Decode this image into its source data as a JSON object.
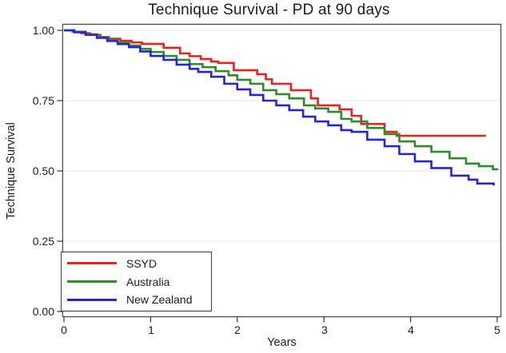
{
  "title": "Technique Survival - PD at 90 days",
  "chart_data": {
    "type": "line",
    "subtype": "kaplan-meier-step",
    "title": "Technique Survival - PD at 90 days",
    "xlabel": "Years",
    "ylabel": "Technique Survival",
    "xlim": [
      0,
      5
    ],
    "ylim": [
      0.0,
      1.0
    ],
    "x_ticks": [
      "0",
      "1",
      "2",
      "3",
      "4",
      "5"
    ],
    "x_tick_values": [
      0,
      1,
      2,
      3,
      4,
      5
    ],
    "y_ticks": [
      "1.00",
      "0.75",
      "0.50",
      "0.25",
      "0.00"
    ],
    "y_tick_values": [
      1.0,
      0.75,
      0.5,
      0.25,
      0.0
    ],
    "grid": "horizontal-light",
    "legend_position": "inside-bottom-left",
    "frame_color": "#4d4d4d",
    "grid_color": "#e4e4e7",
    "series": [
      {
        "name": "SSYD",
        "color": "#e8221f",
        "points": [
          [
            0,
            1.0
          ],
          [
            0.1,
            0.995
          ],
          [
            0.2,
            0.99
          ],
          [
            0.3,
            0.984
          ],
          [
            0.42,
            0.976
          ],
          [
            0.52,
            0.97
          ],
          [
            0.65,
            0.963
          ],
          [
            0.78,
            0.957
          ],
          [
            0.9,
            0.952
          ],
          [
            1.15,
            0.938
          ],
          [
            1.34,
            0.918
          ],
          [
            1.45,
            0.908
          ],
          [
            1.58,
            0.898
          ],
          [
            1.7,
            0.889
          ],
          [
            1.78,
            0.884
          ],
          [
            1.96,
            0.858
          ],
          [
            2.23,
            0.844
          ],
          [
            2.33,
            0.826
          ],
          [
            2.4,
            0.81
          ],
          [
            2.62,
            0.787
          ],
          [
            2.85,
            0.758
          ],
          [
            2.93,
            0.733
          ],
          [
            3.18,
            0.719
          ],
          [
            3.32,
            0.696
          ],
          [
            3.43,
            0.667
          ],
          [
            3.7,
            0.639
          ],
          [
            3.84,
            0.625
          ],
          [
            4.87,
            0.625
          ]
        ]
      },
      {
        "name": "Australia",
        "color": "#2e8b2c",
        "points": [
          [
            0,
            1.0
          ],
          [
            0.12,
            0.995
          ],
          [
            0.25,
            0.986
          ],
          [
            0.38,
            0.976
          ],
          [
            0.5,
            0.966
          ],
          [
            0.62,
            0.956
          ],
          [
            0.75,
            0.946
          ],
          [
            0.88,
            0.934
          ],
          [
            1.0,
            0.923
          ],
          [
            1.15,
            0.909
          ],
          [
            1.3,
            0.895
          ],
          [
            1.45,
            0.88
          ],
          [
            1.6,
            0.869
          ],
          [
            1.75,
            0.855
          ],
          [
            1.9,
            0.84
          ],
          [
            2.0,
            0.824
          ],
          [
            2.15,
            0.81
          ],
          [
            2.3,
            0.787
          ],
          [
            2.45,
            0.773
          ],
          [
            2.6,
            0.758
          ],
          [
            2.77,
            0.733
          ],
          [
            2.9,
            0.722
          ],
          [
            3.05,
            0.71
          ],
          [
            3.2,
            0.685
          ],
          [
            3.32,
            0.676
          ],
          [
            3.5,
            0.653
          ],
          [
            3.7,
            0.631
          ],
          [
            3.87,
            0.605
          ],
          [
            4.05,
            0.588
          ],
          [
            4.24,
            0.568
          ],
          [
            4.45,
            0.545
          ],
          [
            4.64,
            0.526
          ],
          [
            4.79,
            0.517
          ],
          [
            4.95,
            0.506
          ],
          [
            5.0,
            0.503
          ]
        ]
      },
      {
        "name": "New Zealand",
        "color": "#2525d6",
        "points": [
          [
            0,
            1.0
          ],
          [
            0.12,
            0.993
          ],
          [
            0.25,
            0.984
          ],
          [
            0.38,
            0.973
          ],
          [
            0.5,
            0.962
          ],
          [
            0.62,
            0.951
          ],
          [
            0.75,
            0.94
          ],
          [
            0.88,
            0.925
          ],
          [
            1.0,
            0.909
          ],
          [
            1.15,
            0.895
          ],
          [
            1.3,
            0.878
          ],
          [
            1.45,
            0.863
          ],
          [
            1.55,
            0.852
          ],
          [
            1.7,
            0.835
          ],
          [
            1.85,
            0.81
          ],
          [
            2.0,
            0.79
          ],
          [
            2.15,
            0.77
          ],
          [
            2.3,
            0.75
          ],
          [
            2.45,
            0.733
          ],
          [
            2.6,
            0.716
          ],
          [
            2.76,
            0.693
          ],
          [
            2.9,
            0.676
          ],
          [
            3.05,
            0.662
          ],
          [
            3.2,
            0.645
          ],
          [
            3.32,
            0.639
          ],
          [
            3.5,
            0.611
          ],
          [
            3.7,
            0.588
          ],
          [
            3.87,
            0.56
          ],
          [
            4.05,
            0.534
          ],
          [
            4.24,
            0.51
          ],
          [
            4.47,
            0.483
          ],
          [
            4.67,
            0.469
          ],
          [
            4.77,
            0.455
          ],
          [
            4.96,
            0.448
          ]
        ]
      }
    ]
  }
}
